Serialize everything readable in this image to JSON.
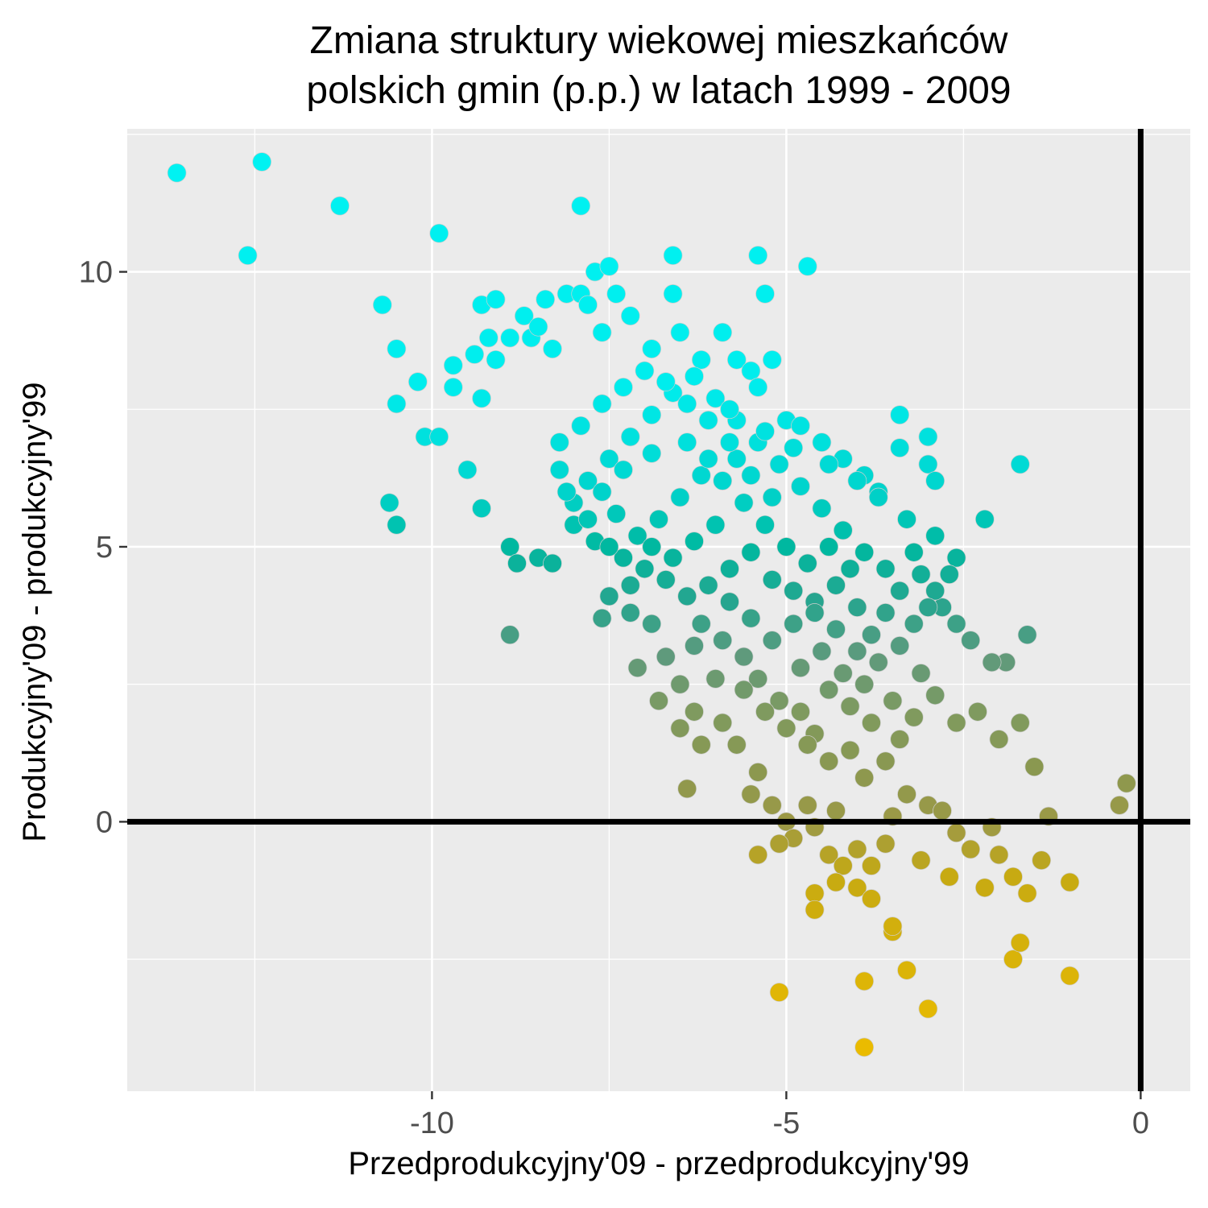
{
  "chart_data": {
    "type": "scatter",
    "title_lines": [
      "Zmiana struktury wiekowej mieszkańców",
      "polskich gmin (p.p.) w latach 1999 - 2009"
    ],
    "xlabel": "Przedprodukcyjny'09 - przedprodukcyjny'99",
    "ylabel": "Produkcyjny'09 - produkcyjny'99",
    "xlim": [
      -14.3,
      0.7
    ],
    "ylim": [
      -4.9,
      12.6
    ],
    "x_ticks": [
      {
        "value": -10,
        "label": "-10"
      },
      {
        "value": -5,
        "label": "-5"
      },
      {
        "value": 0,
        "label": "0"
      }
    ],
    "y_ticks": [
      {
        "value": 10,
        "label": "10"
      },
      {
        "value": 5,
        "label": "5"
      },
      {
        "value": 0,
        "label": "0"
      }
    ],
    "x_minor_ticks": [
      -12.5,
      -7.5,
      -2.5
    ],
    "y_minor_ticks": [
      12.5,
      7.5,
      2.5,
      -2.5
    ],
    "reference_lines": [
      {
        "axis": "x",
        "value": 0
      },
      {
        "axis": "y",
        "value": 0
      }
    ],
    "grid": true,
    "panel_background": "#ebebeb",
    "grid_color": "#ffffff",
    "color_encoding": "gradient by y-value",
    "color_stops": [
      {
        "y": -4.0,
        "color": "#eabb00"
      },
      {
        "y": -1.0,
        "color": "#c7aa12"
      },
      {
        "y": 0.0,
        "color": "#9c9946"
      },
      {
        "y": 1.0,
        "color": "#8a9850"
      },
      {
        "y": 2.0,
        "color": "#7f9a5f"
      },
      {
        "y": 3.0,
        "color": "#5f9a7c"
      },
      {
        "y": 4.0,
        "color": "#26a58f"
      },
      {
        "y": 5.0,
        "color": "#00b8a0"
      },
      {
        "y": 6.0,
        "color": "#00d3cb"
      },
      {
        "y": 7.0,
        "color": "#00e1de"
      },
      {
        "y": 8.0,
        "color": "#00eded"
      },
      {
        "y": 12.0,
        "color": "#00f2f2"
      }
    ],
    "series": [
      {
        "points": [
          [
            -13.6,
            11.8
          ],
          [
            -12.4,
            12.0
          ],
          [
            -12.6,
            10.3
          ],
          [
            -11.3,
            11.2
          ],
          [
            -9.9,
            10.7
          ],
          [
            -7.9,
            11.2
          ],
          [
            -6.6,
            10.3
          ],
          [
            -5.4,
            10.3
          ],
          [
            -4.7,
            10.1
          ],
          [
            -10.7,
            9.4
          ],
          [
            -10.5,
            8.6
          ],
          [
            -10.5,
            7.6
          ],
          [
            -10.2,
            8.0
          ],
          [
            -10.1,
            7.0
          ],
          [
            -9.9,
            7.0
          ],
          [
            -9.7,
            8.3
          ],
          [
            -9.7,
            7.9
          ],
          [
            -9.4,
            8.5
          ],
          [
            -9.3,
            7.7
          ],
          [
            -9.3,
            9.4
          ],
          [
            -9.2,
            8.8
          ],
          [
            -9.1,
            9.5
          ],
          [
            -9.1,
            8.4
          ],
          [
            -8.9,
            8.8
          ],
          [
            -8.7,
            9.2
          ],
          [
            -8.6,
            8.8
          ],
          [
            -8.5,
            9.0
          ],
          [
            -8.4,
            9.5
          ],
          [
            -8.3,
            8.6
          ],
          [
            -8.1,
            9.6
          ],
          [
            -7.9,
            9.6
          ],
          [
            -7.8,
            9.4
          ],
          [
            -7.7,
            10.0
          ],
          [
            -7.5,
            10.1
          ],
          [
            -7.6,
            8.9
          ],
          [
            -7.4,
            9.6
          ],
          [
            -7.2,
            9.2
          ],
          [
            -6.9,
            8.6
          ],
          [
            -6.6,
            9.6
          ],
          [
            -6.5,
            8.9
          ],
          [
            -6.2,
            8.4
          ],
          [
            -5.9,
            8.9
          ],
          [
            -5.7,
            8.4
          ],
          [
            -5.5,
            8.2
          ],
          [
            -5.3,
            9.6
          ],
          [
            -5.2,
            8.4
          ],
          [
            -5.4,
            7.9
          ],
          [
            -5.0,
            7.3
          ],
          [
            -4.8,
            7.2
          ],
          [
            -4.5,
            6.9
          ],
          [
            -4.2,
            6.6
          ],
          [
            -3.9,
            6.3
          ],
          [
            -3.7,
            6.0
          ],
          [
            -3.4,
            6.8
          ],
          [
            -3.0,
            6.5
          ],
          [
            -2.9,
            6.2
          ],
          [
            -3.0,
            7.0
          ],
          [
            -3.4,
            7.4
          ],
          [
            -1.7,
            6.5
          ],
          [
            -2.2,
            5.5
          ],
          [
            -10.6,
            5.8
          ],
          [
            -10.5,
            5.4
          ],
          [
            -9.3,
            5.7
          ],
          [
            -8.9,
            5.0
          ],
          [
            -8.8,
            4.7
          ],
          [
            -8.5,
            4.8
          ],
          [
            -8.2,
            6.4
          ],
          [
            -8.0,
            5.8
          ],
          [
            -9.5,
            6.4
          ],
          [
            -8.9,
            3.4
          ],
          [
            -8.3,
            4.7
          ],
          [
            -7.6,
            3.7
          ],
          [
            -7.2,
            3.8
          ],
          [
            -6.9,
            3.6
          ],
          [
            -7.1,
            2.8
          ],
          [
            -6.3,
            3.2
          ],
          [
            -6.0,
            2.6
          ],
          [
            -6.3,
            2.0
          ],
          [
            -5.9,
            1.8
          ],
          [
            -5.7,
            1.4
          ],
          [
            -6.5,
            1.7
          ],
          [
            -6.2,
            1.4
          ],
          [
            -6.4,
            0.6
          ],
          [
            -5.4,
            0.9
          ],
          [
            -5.5,
            0.5
          ],
          [
            -5.2,
            0.3
          ],
          [
            -5.0,
            0.0
          ],
          [
            -4.9,
            -0.3
          ],
          [
            -5.1,
            -0.4
          ],
          [
            -4.7,
            0.3
          ],
          [
            -4.6,
            -0.1
          ],
          [
            -4.3,
            0.2
          ],
          [
            -4.4,
            -0.6
          ],
          [
            -4.2,
            -0.8
          ],
          [
            -4.0,
            -0.5
          ],
          [
            -3.8,
            -0.8
          ],
          [
            -3.6,
            -0.4
          ],
          [
            -3.5,
            0.1
          ],
          [
            -3.3,
            0.5
          ],
          [
            -3.0,
            0.3
          ],
          [
            -2.8,
            0.2
          ],
          [
            -2.6,
            -0.2
          ],
          [
            -2.4,
            -0.5
          ],
          [
            -2.1,
            -0.1
          ],
          [
            -2.0,
            -0.6
          ],
          [
            -1.8,
            -1.0
          ],
          [
            -1.6,
            -1.3
          ],
          [
            -1.3,
            0.1
          ],
          [
            -1.0,
            -1.1
          ],
          [
            -0.3,
            0.3
          ],
          [
            -0.2,
            0.7
          ],
          [
            -1.5,
            1.0
          ],
          [
            -1.7,
            1.8
          ],
          [
            -2.0,
            1.5
          ],
          [
            -2.3,
            2.0
          ],
          [
            -2.6,
            1.8
          ],
          [
            -2.9,
            2.3
          ],
          [
            -3.1,
            2.7
          ],
          [
            -3.4,
            1.5
          ],
          [
            -3.6,
            1.1
          ],
          [
            -3.9,
            0.8
          ],
          [
            -4.1,
            1.3
          ],
          [
            -4.4,
            1.1
          ],
          [
            -4.6,
            1.6
          ],
          [
            -4.8,
            2.0
          ],
          [
            -5.1,
            2.2
          ],
          [
            -5.4,
            2.6
          ],
          [
            -5.6,
            3.0
          ],
          [
            -1.6,
            3.4
          ],
          [
            -1.9,
            2.9
          ],
          [
            -2.1,
            2.9
          ],
          [
            -2.4,
            3.3
          ],
          [
            -2.6,
            3.6
          ],
          [
            -2.8,
            3.9
          ],
          [
            -2.9,
            4.2
          ],
          [
            -3.1,
            4.5
          ],
          [
            -3.2,
            4.9
          ],
          [
            -2.9,
            5.2
          ],
          [
            -2.6,
            4.8
          ],
          [
            -2.7,
            4.5
          ],
          [
            -3.4,
            4.2
          ],
          [
            -3.6,
            3.8
          ],
          [
            -3.8,
            3.4
          ],
          [
            -4.0,
            3.9
          ],
          [
            -4.3,
            4.3
          ],
          [
            -4.6,
            4.0
          ],
          [
            -4.9,
            3.6
          ],
          [
            -5.2,
            3.3
          ],
          [
            -5.5,
            3.7
          ],
          [
            -5.8,
            4.0
          ],
          [
            -6.1,
            4.3
          ],
          [
            -6.4,
            4.1
          ],
          [
            -6.7,
            4.4
          ],
          [
            -7.0,
            4.6
          ],
          [
            -7.3,
            4.8
          ],
          [
            -7.7,
            5.1
          ],
          [
            -8.0,
            5.4
          ],
          [
            -7.8,
            6.2
          ],
          [
            -7.5,
            6.6
          ],
          [
            -7.2,
            7.0
          ],
          [
            -6.9,
            7.4
          ],
          [
            -6.6,
            7.8
          ],
          [
            -6.3,
            8.1
          ],
          [
            -6.0,
            7.7
          ],
          [
            -5.7,
            7.3
          ],
          [
            -5.4,
            6.9
          ],
          [
            -5.1,
            6.5
          ],
          [
            -4.8,
            6.1
          ],
          [
            -4.5,
            5.7
          ],
          [
            -4.2,
            5.3
          ],
          [
            -3.9,
            4.9
          ],
          [
            -3.6,
            4.6
          ],
          [
            -3.3,
            5.5
          ],
          [
            -3.7,
            5.9
          ],
          [
            -4.0,
            6.2
          ],
          [
            -4.4,
            6.5
          ],
          [
            -4.9,
            6.8
          ],
          [
            -5.3,
            7.1
          ],
          [
            -5.8,
            7.5
          ],
          [
            -6.2,
            6.3
          ],
          [
            -6.5,
            5.9
          ],
          [
            -6.8,
            5.5
          ],
          [
            -7.1,
            5.2
          ],
          [
            -7.4,
            5.6
          ],
          [
            -7.6,
            6.0
          ],
          [
            -7.3,
            6.4
          ],
          [
            -6.9,
            6.7
          ],
          [
            -6.4,
            6.9
          ],
          [
            -6.1,
            6.6
          ],
          [
            -5.9,
            6.2
          ],
          [
            -5.6,
            5.8
          ],
          [
            -5.3,
            5.4
          ],
          [
            -5.0,
            5.0
          ],
          [
            -4.7,
            4.7
          ],
          [
            -4.4,
            5.0
          ],
          [
            -4.1,
            4.6
          ],
          [
            -5.2,
            5.9
          ],
          [
            -5.5,
            6.3
          ],
          [
            -5.7,
            6.6
          ],
          [
            -6.0,
            5.4
          ],
          [
            -6.3,
            5.1
          ],
          [
            -6.6,
            4.8
          ],
          [
            -6.9,
            5.0
          ],
          [
            -7.2,
            4.3
          ],
          [
            -7.5,
            4.1
          ],
          [
            -5.8,
            4.6
          ],
          [
            -5.5,
            4.9
          ],
          [
            -5.2,
            4.4
          ],
          [
            -4.9,
            4.2
          ],
          [
            -4.6,
            3.8
          ],
          [
            -4.3,
            3.5
          ],
          [
            -4.0,
            3.1
          ],
          [
            -3.7,
            2.9
          ],
          [
            -3.4,
            3.2
          ],
          [
            -3.2,
            3.6
          ],
          [
            -3.0,
            3.9
          ],
          [
            -7.9,
            7.2
          ],
          [
            -7.6,
            7.6
          ],
          [
            -7.3,
            7.9
          ],
          [
            -7.0,
            8.2
          ],
          [
            -6.7,
            8.0
          ],
          [
            -6.4,
            7.6
          ],
          [
            -6.1,
            7.3
          ],
          [
            -5.8,
            6.9
          ],
          [
            -8.2,
            6.9
          ],
          [
            -8.1,
            6.0
          ],
          [
            -7.8,
            5.5
          ],
          [
            -7.5,
            5.0
          ],
          [
            -6.2,
            3.6
          ],
          [
            -5.9,
            3.3
          ],
          [
            -5.6,
            2.4
          ],
          [
            -5.3,
            2.0
          ],
          [
            -5.0,
            1.7
          ],
          [
            -4.7,
            1.4
          ],
          [
            -4.4,
            2.4
          ],
          [
            -4.1,
            2.1
          ],
          [
            -3.8,
            1.8
          ],
          [
            -3.5,
            2.2
          ],
          [
            -3.2,
            1.9
          ],
          [
            -4.8,
            2.8
          ],
          [
            -4.5,
            3.1
          ],
          [
            -4.2,
            2.7
          ],
          [
            -3.9,
            2.5
          ],
          [
            -6.7,
            3.0
          ],
          [
            -6.5,
            2.5
          ],
          [
            -6.8,
            2.2
          ],
          [
            -4.0,
            -1.2
          ],
          [
            -4.6,
            -1.3
          ],
          [
            -4.6,
            -1.6
          ],
          [
            -3.5,
            -2.0
          ],
          [
            -3.9,
            -2.9
          ],
          [
            -5.1,
            -3.1
          ],
          [
            -3.3,
            -2.7
          ],
          [
            -3.0,
            -3.4
          ],
          [
            -3.9,
            -4.1
          ],
          [
            -1.8,
            -2.5
          ],
          [
            -1.7,
            -2.2
          ],
          [
            -1.0,
            -2.8
          ],
          [
            -2.7,
            -1.0
          ],
          [
            -3.1,
            -0.7
          ],
          [
            -2.2,
            -1.2
          ],
          [
            -1.4,
            -0.7
          ],
          [
            -4.3,
            -1.1
          ],
          [
            -3.8,
            -1.4
          ],
          [
            -3.5,
            -1.9
          ],
          [
            -5.4,
            -0.6
          ]
        ]
      }
    ]
  }
}
